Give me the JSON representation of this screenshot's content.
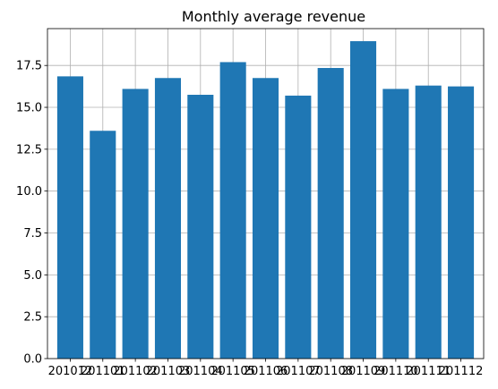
{
  "chart_data": {
    "type": "bar",
    "title": "Monthly average revenue",
    "xlabel": "",
    "ylabel": "",
    "categories": [
      "201012",
      "201101",
      "201102",
      "201103",
      "201104",
      "201105",
      "201106",
      "201107",
      "201108",
      "201109",
      "201110",
      "201111",
      "201112"
    ],
    "values": [
      16.85,
      13.6,
      16.1,
      16.75,
      15.75,
      17.7,
      16.75,
      15.7,
      17.35,
      18.95,
      16.1,
      16.3,
      16.25
    ],
    "ylim": [
      0,
      19.7
    ],
    "yticks": [
      "0.0",
      "2.5",
      "5.0",
      "7.5",
      "10.0",
      "12.5",
      "15.0",
      "17.5"
    ],
    "grid": true,
    "legend": "none",
    "colors": {
      "bar": "#1f77b4",
      "grid": "#b0b0b0",
      "axis": "#000000"
    }
  }
}
